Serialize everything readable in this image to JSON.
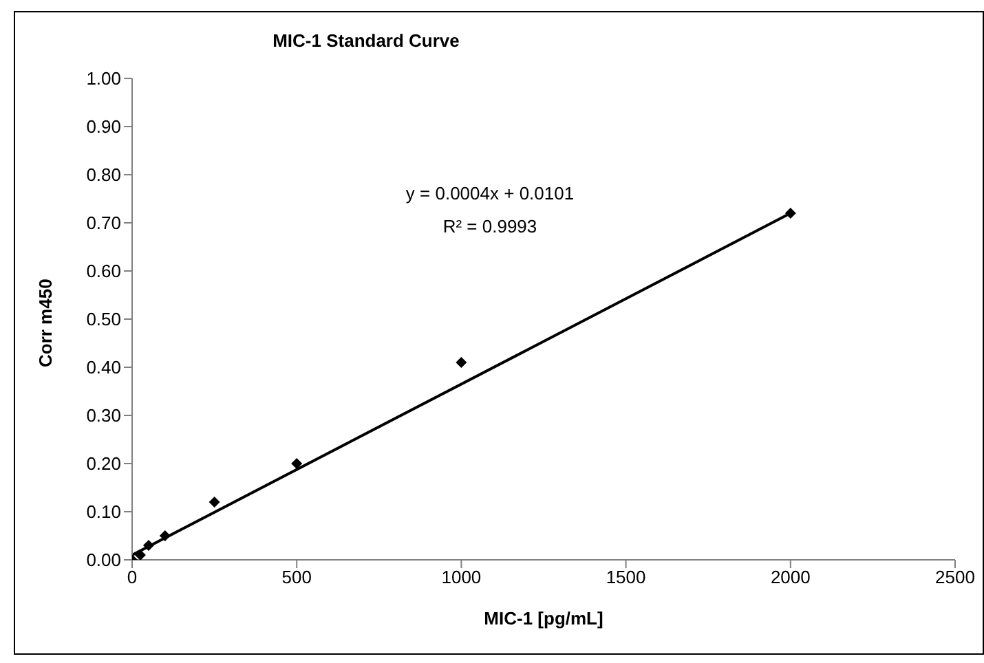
{
  "chart_data": {
    "type": "scatter",
    "title": "MIC-1 Standard Curve",
    "xlabel": "MIC-1 [pg/mL]",
    "ylabel": "Corr m450",
    "x": [
      0,
      25,
      50,
      100,
      250,
      500,
      1000,
      2000
    ],
    "series": [
      {
        "color": "#000000",
        "marker": "diamond",
        "values": [
          0,
          0.01,
          0.03,
          0.05,
          0.12,
          0.2,
          0.41,
          0.72
        ]
      },
      {
        "type": "line",
        "color": "#000000",
        "x": [
          0,
          2000
        ],
        "values": [
          0.01,
          0.72
        ]
      }
    ],
    "annotations": [
      "y = 0.0004x + 0.0101",
      "R² = 0.9993"
    ],
    "xlim": [
      0,
      2500
    ],
    "xticks": [
      0,
      500,
      1000,
      1500,
      2000,
      2500
    ],
    "ylim": [
      0,
      1
    ],
    "yticks": [
      {
        "value": 0,
        "label": "0.00"
      },
      {
        "value": 0.1,
        "label": "0.10"
      },
      {
        "value": 0.2,
        "label": "0.20"
      },
      {
        "value": 0.3,
        "label": "0.30"
      },
      {
        "value": 0.4,
        "label": "0.40"
      },
      {
        "value": 0.5,
        "label": "0.50"
      },
      {
        "value": 0.6,
        "label": "0.60"
      },
      {
        "value": 0.7,
        "label": "0.70"
      },
      {
        "value": 0.8,
        "label": "0.80"
      },
      {
        "value": 0.9,
        "label": "0.90"
      },
      {
        "value": 1,
        "label": "1.00"
      }
    ],
    "grid": false,
    "legend": false
  }
}
